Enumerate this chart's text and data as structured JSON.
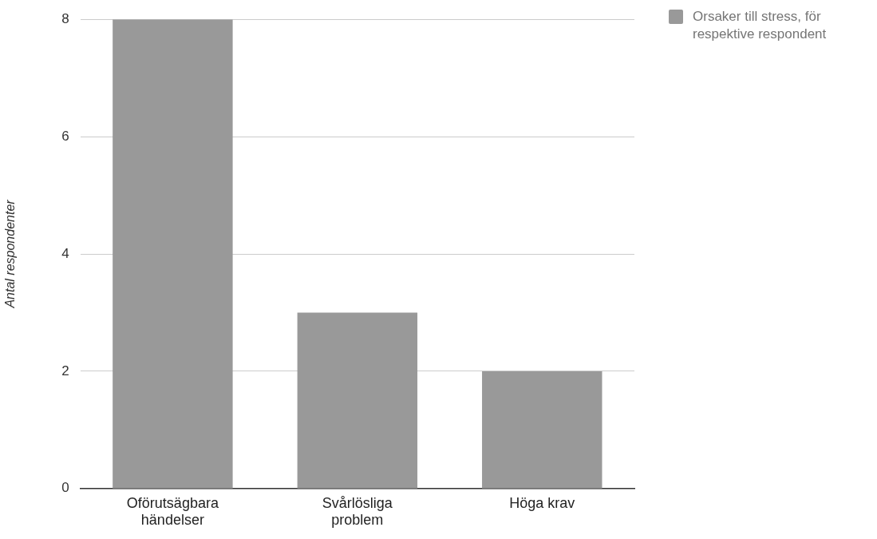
{
  "chart_data": {
    "type": "bar",
    "ylabel": "Antal respondenter",
    "categories": [
      "Oförutsägbara händelser",
      "Svårlösliga problem",
      "Höga krav"
    ],
    "series": [
      {
        "name": "Orsaker till stress, för respektive respondent",
        "color": "#999999",
        "values": [
          8,
          3,
          2
        ]
      }
    ],
    "ylim": [
      0,
      8
    ],
    "yticks": [
      0,
      2,
      4,
      6,
      8
    ],
    "grid": "y",
    "legend": "top right"
  }
}
